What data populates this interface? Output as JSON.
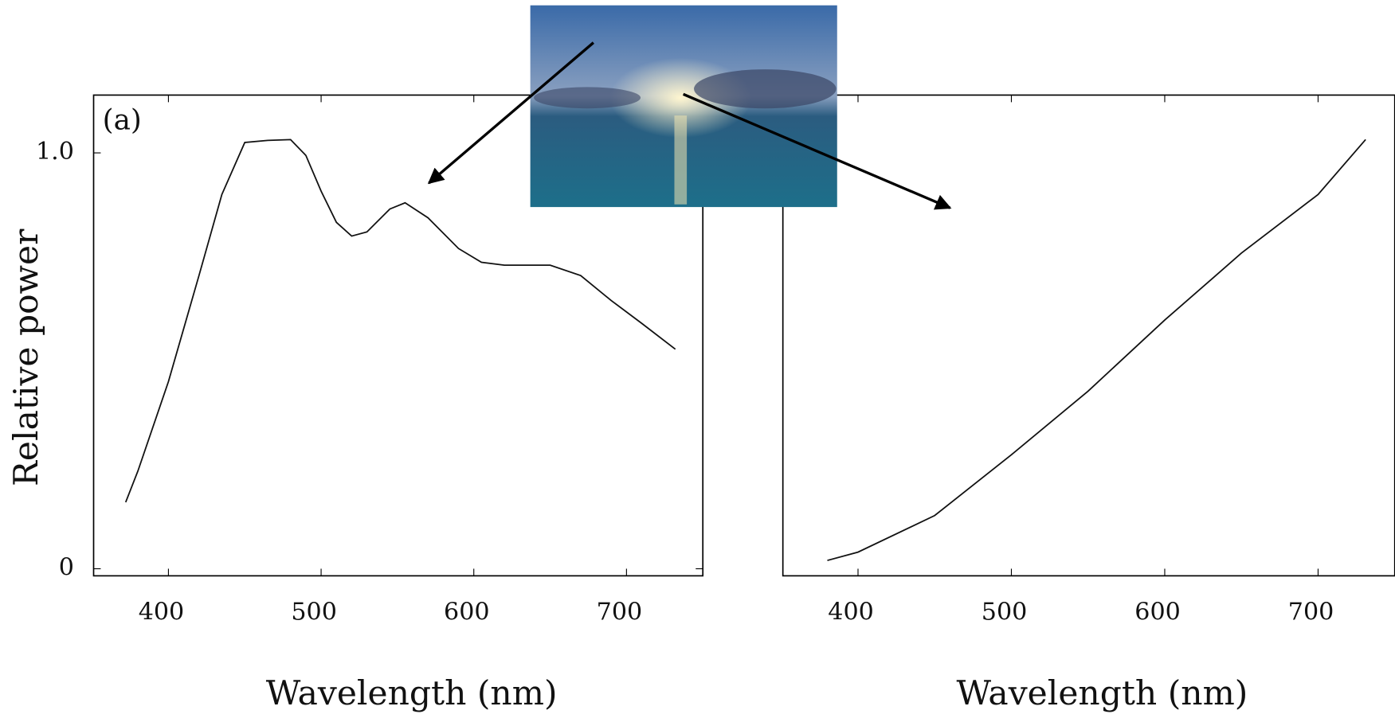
{
  "chart_data": [
    {
      "type": "line",
      "annotation": "(a)",
      "xlabel": "Wavelength (nm)",
      "ylabel": "Relative power",
      "x": [
        372,
        380,
        400,
        420,
        435,
        450,
        465,
        480,
        490,
        500,
        510,
        520,
        530,
        545,
        555,
        570,
        590,
        605,
        620,
        650,
        670,
        690,
        710,
        732
      ],
      "series": [
        {
          "color": "#111111",
          "values": [
            0.16,
            0.235,
            0.45,
            0.705,
            0.9,
            1.025,
            1.03,
            1.032,
            0.994,
            0.908,
            0.833,
            0.8,
            0.81,
            0.865,
            0.88,
            0.844,
            0.77,
            0.737,
            0.73,
            0.73,
            0.705,
            0.645,
            0.59,
            0.528
          ]
        }
      ],
      "xlim": [
        351,
        750
      ],
      "ylim": [
        -0.017,
        1.139
      ],
      "xticks": [
        400,
        500,
        600,
        700
      ],
      "yticks": [
        0,
        {
          "value": 1,
          "label": "1.0"
        }
      ]
    },
    {
      "type": "line",
      "xlabel": "Wavelength (nm)",
      "x": [
        380,
        400,
        450,
        500,
        550,
        600,
        650,
        700,
        731
      ],
      "series": [
        {
          "color": "#111111",
          "values": [
            0.02,
            0.04,
            0.128,
            0.274,
            0.427,
            0.598,
            0.759,
            0.9,
            1.032
          ]
        }
      ],
      "xlim": [
        351,
        750
      ],
      "ylim": [
        -0.017,
        1.139
      ],
      "xticks": [
        400,
        500,
        600,
        700
      ]
    }
  ]
}
